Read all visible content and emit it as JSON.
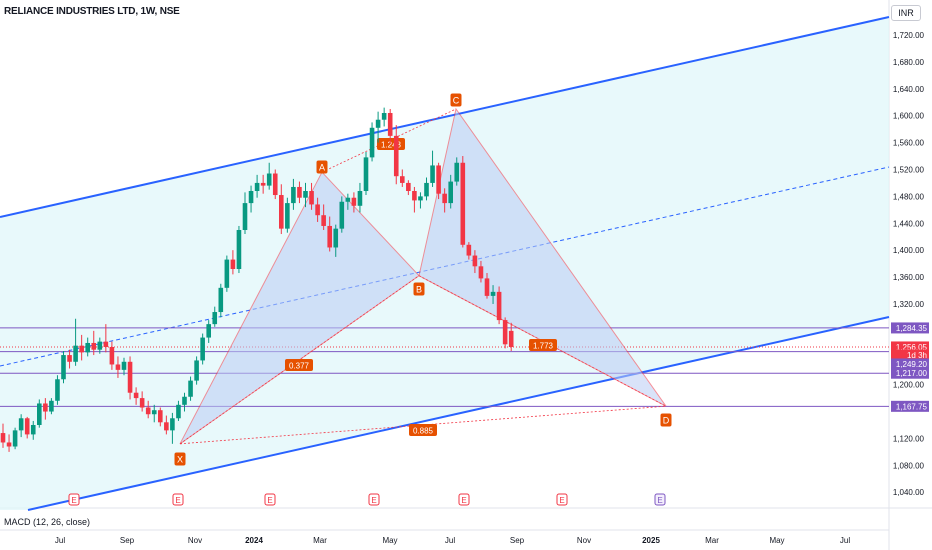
{
  "header": {
    "symbol_title": "RELIANCE INDUSTRIES LTD, 1W, NSE",
    "currency": "INR"
  },
  "indicator": {
    "label": "MACD (12, 26, close)"
  },
  "price_axis": {
    "ticks": [
      "1,720.00",
      "1,680.00",
      "1,640.00",
      "1,600.00",
      "1,560.00",
      "1,520.00",
      "1,480.00",
      "1,440.00",
      "1,400.00",
      "1,360.00",
      "1,320.00",
      "1,200.00",
      "1,120.00",
      "1,080.00",
      "1,040.00"
    ],
    "tick_values": [
      1720,
      1680,
      1640,
      1600,
      1560,
      1520,
      1480,
      1440,
      1400,
      1360,
      1320,
      1200,
      1120,
      1080,
      1040
    ]
  },
  "time_axis": {
    "labels": [
      "Jul",
      "Sep",
      "Nov",
      "2024",
      "Mar",
      "May",
      "Jul",
      "Sep",
      "Nov",
      "2025",
      "Mar",
      "May",
      "Jul"
    ]
  },
  "price_labels": [
    {
      "text": "1,284.35",
      "value": 1284.35,
      "color": "#7e57c2"
    },
    {
      "text": "1,256.05",
      "value": 1256.05,
      "color": "#f23645"
    },
    {
      "text": "1d 3h",
      "value": 1243,
      "color": "#f23645"
    },
    {
      "text": "1,249.20",
      "value": 1249.2,
      "color": "#7e57c2"
    },
    {
      "text": "1,217.00",
      "value": 1217.0,
      "color": "#7e57c2"
    },
    {
      "text": "1,167.75",
      "value": 1167.75,
      "color": "#7e57c2"
    }
  ],
  "pattern": {
    "points": [
      {
        "label": "X",
        "value": 1112
      },
      {
        "label": "A",
        "value": 1516
      },
      {
        "label": "B",
        "value": 1362
      },
      {
        "label": "C",
        "value": 1610
      },
      {
        "label": "D",
        "value": 1168
      }
    ],
    "ratios": [
      "1.243",
      "0.377",
      "1.773",
      "0.885"
    ]
  },
  "earnings_marker": "E",
  "colors": {
    "up": "#089981",
    "down": "#f23645",
    "channel": "#2962ff",
    "level": "#7e57c2",
    "pattern_fill": "#bbcdf5",
    "pattern_line": "#f23645",
    "point_bg": "#e65100"
  },
  "chart_data": {
    "type": "candlestick",
    "title": "RELIANCE INDUSTRIES LTD, 1W, NSE",
    "ylabel": "INR",
    "ylim": [
      1020,
      1750
    ],
    "price_scale": "linear",
    "series": [
      {
        "name": "weekly candles",
        "ohlc": [
          [
            1128,
            1142,
            1106,
            1114
          ],
          [
            1114,
            1126,
            1100,
            1108
          ],
          [
            1108,
            1136,
            1104,
            1132
          ],
          [
            1132,
            1156,
            1122,
            1150
          ],
          [
            1150,
            1152,
            1120,
            1126
          ],
          [
            1126,
            1146,
            1118,
            1140
          ],
          [
            1140,
            1178,
            1136,
            1172
          ],
          [
            1172,
            1180,
            1148,
            1160
          ],
          [
            1160,
            1180,
            1156,
            1176
          ],
          [
            1176,
            1214,
            1170,
            1208
          ],
          [
            1208,
            1250,
            1202,
            1244
          ],
          [
            1244,
            1252,
            1224,
            1234
          ],
          [
            1234,
            1298,
            1228,
            1258
          ],
          [
            1258,
            1274,
            1236,
            1248
          ],
          [
            1248,
            1270,
            1242,
            1262
          ],
          [
            1262,
            1280,
            1244,
            1252
          ],
          [
            1252,
            1270,
            1246,
            1264
          ],
          [
            1264,
            1290,
            1248,
            1256
          ],
          [
            1256,
            1264,
            1222,
            1230
          ],
          [
            1230,
            1242,
            1210,
            1222
          ],
          [
            1222,
            1240,
            1214,
            1234
          ],
          [
            1234,
            1242,
            1178,
            1188
          ],
          [
            1188,
            1196,
            1170,
            1180
          ],
          [
            1180,
            1190,
            1160,
            1166
          ],
          [
            1166,
            1176,
            1150,
            1156
          ],
          [
            1156,
            1170,
            1144,
            1162
          ],
          [
            1162,
            1166,
            1138,
            1144
          ],
          [
            1144,
            1154,
            1126,
            1132
          ],
          [
            1132,
            1158,
            1112,
            1150
          ],
          [
            1150,
            1176,
            1146,
            1170
          ],
          [
            1170,
            1188,
            1160,
            1182
          ],
          [
            1182,
            1212,
            1176,
            1206
          ],
          [
            1206,
            1242,
            1200,
            1236
          ],
          [
            1236,
            1276,
            1230,
            1270
          ],
          [
            1270,
            1296,
            1262,
            1290
          ],
          [
            1290,
            1316,
            1286,
            1308
          ],
          [
            1308,
            1350,
            1300,
            1344
          ],
          [
            1344,
            1392,
            1338,
            1386
          ],
          [
            1386,
            1400,
            1364,
            1372
          ],
          [
            1372,
            1436,
            1366,
            1430
          ],
          [
            1430,
            1486,
            1424,
            1470
          ],
          [
            1470,
            1496,
            1456,
            1488
          ],
          [
            1488,
            1512,
            1478,
            1500
          ],
          [
            1500,
            1512,
            1484,
            1496
          ],
          [
            1496,
            1530,
            1490,
            1514
          ],
          [
            1514,
            1520,
            1476,
            1482
          ],
          [
            1482,
            1498,
            1424,
            1432
          ],
          [
            1432,
            1478,
            1426,
            1470
          ],
          [
            1470,
            1506,
            1460,
            1494
          ],
          [
            1494,
            1502,
            1470,
            1478
          ],
          [
            1478,
            1500,
            1464,
            1488
          ],
          [
            1488,
            1500,
            1460,
            1468
          ],
          [
            1468,
            1478,
            1442,
            1452
          ],
          [
            1452,
            1468,
            1430,
            1436
          ],
          [
            1436,
            1450,
            1398,
            1404
          ],
          [
            1404,
            1438,
            1390,
            1432
          ],
          [
            1432,
            1480,
            1426,
            1472
          ],
          [
            1472,
            1484,
            1460,
            1478
          ],
          [
            1478,
            1486,
            1456,
            1466
          ],
          [
            1466,
            1500,
            1456,
            1488
          ],
          [
            1488,
            1546,
            1482,
            1538
          ],
          [
            1538,
            1590,
            1532,
            1582
          ],
          [
            1582,
            1606,
            1560,
            1594
          ],
          [
            1594,
            1612,
            1584,
            1604
          ],
          [
            1604,
            1610,
            1558,
            1570
          ],
          [
            1570,
            1586,
            1498,
            1510
          ],
          [
            1510,
            1520,
            1494,
            1500
          ],
          [
            1500,
            1504,
            1482,
            1488
          ],
          [
            1488,
            1494,
            1456,
            1474
          ],
          [
            1474,
            1486,
            1462,
            1480
          ],
          [
            1480,
            1508,
            1474,
            1500
          ],
          [
            1500,
            1548,
            1494,
            1526
          ],
          [
            1526,
            1530,
            1476,
            1484
          ],
          [
            1484,
            1492,
            1456,
            1470
          ],
          [
            1470,
            1512,
            1462,
            1502
          ],
          [
            1502,
            1538,
            1496,
            1530
          ],
          [
            1530,
            1540,
            1404,
            1408
          ],
          [
            1408,
            1412,
            1386,
            1392
          ],
          [
            1392,
            1400,
            1366,
            1376
          ],
          [
            1376,
            1384,
            1352,
            1358
          ],
          [
            1358,
            1366,
            1328,
            1332
          ],
          [
            1332,
            1348,
            1320,
            1338
          ],
          [
            1338,
            1346,
            1290,
            1296
          ],
          [
            1296,
            1300,
            1254,
            1260
          ],
          [
            1280,
            1292,
            1250,
            1256
          ]
        ]
      }
    ]
  }
}
